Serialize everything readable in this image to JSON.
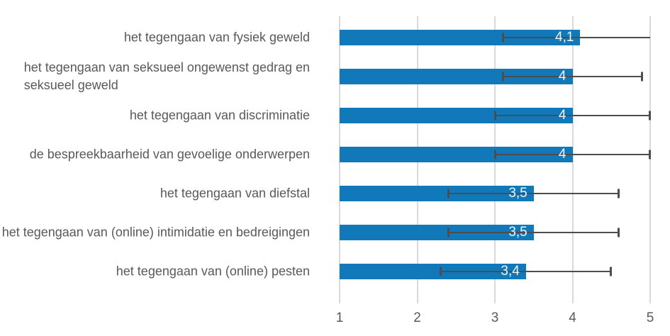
{
  "chart_data": {
    "type": "bar",
    "orientation": "horizontal",
    "title": "",
    "xlabel": "",
    "ylabel": "",
    "xlim": [
      1,
      5
    ],
    "xticks": [
      "1",
      "2",
      "3",
      "4",
      "5"
    ],
    "grid": true,
    "legend": false,
    "categories": [
      {
        "lines": [
          "het tegengaan van fysiek geweld"
        ]
      },
      {
        "lines": [
          "het tegengaan van seksueel ongewenst gedrag en",
          "seksueel geweld"
        ]
      },
      {
        "lines": [
          "het tegengaan van discriminatie"
        ]
      },
      {
        "lines": [
          "de bespreekbaarheid van gevoelige onderwerpen"
        ]
      },
      {
        "lines": [
          "het tegengaan van diefstal"
        ]
      },
      {
        "lines": [
          "het tegengaan van (online) intimidatie en bedreigingen"
        ]
      },
      {
        "lines": [
          "het tegengaan van (online) pesten"
        ]
      }
    ],
    "values": [
      4.1,
      4,
      4,
      4,
      3.5,
      3.5,
      3.4
    ],
    "value_labels": [
      "4,1",
      "4",
      "4",
      "4",
      "3,5",
      "3,5",
      "3,4"
    ],
    "error_low": [
      3.1,
      3.1,
      3.0,
      3.0,
      2.4,
      2.4,
      2.3
    ],
    "error_high": [
      5.0,
      4.9,
      5.0,
      5.0,
      4.6,
      4.6,
      4.5
    ],
    "error_high_has_cap": [
      false,
      true,
      true,
      true,
      true,
      true,
      true
    ],
    "colors": {
      "bar": "#1179BA",
      "error_bar": "#4D4D4D",
      "gridline": "#D9D9D9",
      "category_text": "#595959",
      "axis_text": "#595959",
      "value_label_text": "#EFF6FB"
    }
  }
}
